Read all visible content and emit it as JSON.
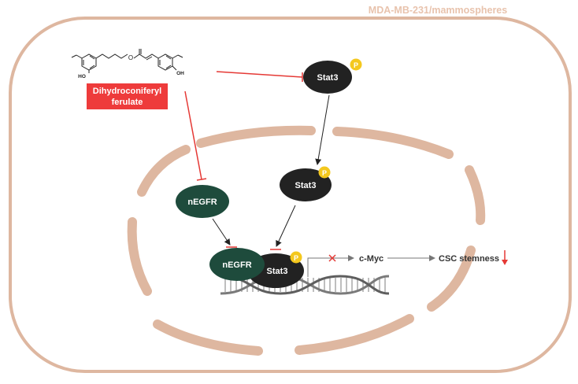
{
  "header": {
    "cell_context": "MDA-MB-231/mammospheres"
  },
  "compound": {
    "name_line1": "Dihydroconiferyl",
    "name_line2": "ferulate",
    "structure_labels": {
      "hydroxyl_left": "HO",
      "hydroxyl_right": "OH"
    }
  },
  "nodes": {
    "stat3_cytoplasm": "Stat3",
    "stat3_nucleus": "Stat3",
    "negfr_free": "nEGFR",
    "negfr_complex": "nEGFR",
    "stat3_complex": "Stat3",
    "phospho_badge": "P"
  },
  "outputs": {
    "target_gene": "c-Myc",
    "phenotype": "CSC stemness"
  },
  "colors": {
    "membrane": "#deb7a0",
    "stat3_fill": "#222222",
    "negfr_fill": "#1e4b3c",
    "phospho_fill": "#f4c81e",
    "inhibition": "#e53935",
    "drug_label_bg": "#ee3b3b",
    "title_text": "#e8c3ad"
  }
}
